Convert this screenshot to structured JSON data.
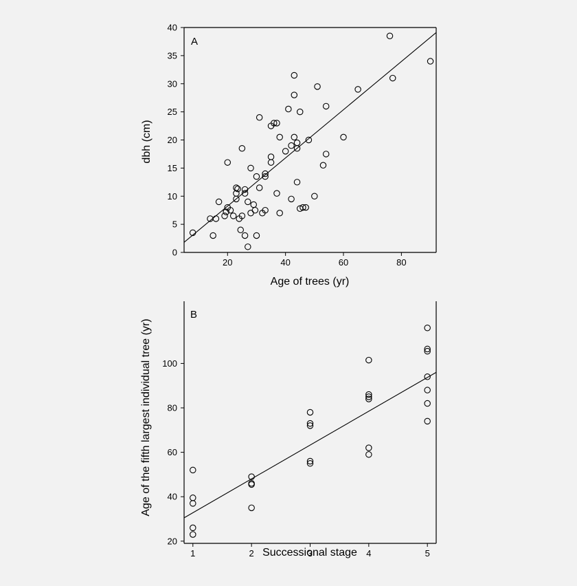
{
  "colors": {
    "background": "#f2f2f2",
    "ink": "#000000"
  },
  "chart_data": [
    {
      "type": "scatter",
      "panel_label": "A",
      "xlabel": "Age of trees (yr)",
      "ylabel": "dbh (cm)",
      "xlim": [
        5,
        92
      ],
      "ylim": [
        0,
        40
      ],
      "xticks": [
        20,
        40,
        60,
        80
      ],
      "yticks": [
        0,
        5,
        10,
        15,
        20,
        25,
        30,
        35,
        40
      ],
      "grid": false,
      "fit_line": {
        "x": [
          5,
          92
        ],
        "y": [
          1.8,
          39.1
        ]
      },
      "points": [
        [
          8,
          3.5
        ],
        [
          14,
          6
        ],
        [
          15,
          3
        ],
        [
          16,
          6
        ],
        [
          17,
          9
        ],
        [
          19,
          6.5
        ],
        [
          19.5,
          7.2
        ],
        [
          20,
          8
        ],
        [
          20,
          16
        ],
        [
          21,
          7.5
        ],
        [
          22,
          6.5
        ],
        [
          23,
          9.5
        ],
        [
          23,
          10.5
        ],
        [
          23,
          11.5
        ],
        [
          23.5,
          11.3
        ],
        [
          24,
          6
        ],
        [
          24.5,
          4
        ],
        [
          25,
          6.5
        ],
        [
          25,
          18.5
        ],
        [
          26,
          3
        ],
        [
          26,
          10.5
        ],
        [
          26,
          11.2
        ],
        [
          27,
          1
        ],
        [
          27,
          9
        ],
        [
          28,
          15
        ],
        [
          28,
          7
        ],
        [
          29,
          8.5
        ],
        [
          29.5,
          7.5
        ],
        [
          30,
          3
        ],
        [
          30,
          13.5
        ],
        [
          31,
          11.5
        ],
        [
          31,
          24
        ],
        [
          32,
          7
        ],
        [
          33,
          7.5
        ],
        [
          33,
          13.5
        ],
        [
          33,
          14
        ],
        [
          35,
          17
        ],
        [
          35,
          16
        ],
        [
          35,
          22.5
        ],
        [
          36,
          23
        ],
        [
          37,
          23
        ],
        [
          37,
          10.5
        ],
        [
          38,
          20.5
        ],
        [
          38,
          7
        ],
        [
          40,
          18
        ],
        [
          41,
          25.5
        ],
        [
          42,
          9.5
        ],
        [
          42,
          19
        ],
        [
          43,
          20.5
        ],
        [
          43,
          28
        ],
        [
          43,
          31.5
        ],
        [
          44,
          19.5
        ],
        [
          44,
          18.5
        ],
        [
          44,
          12.5
        ],
        [
          45,
          7.8
        ],
        [
          45,
          25
        ],
        [
          46,
          8
        ],
        [
          47,
          8
        ],
        [
          48,
          20
        ],
        [
          50,
          10
        ],
        [
          51,
          29.5
        ],
        [
          53,
          15.5
        ],
        [
          54,
          17.5
        ],
        [
          54,
          26
        ],
        [
          60,
          20.5
        ],
        [
          65,
          29
        ],
        [
          76,
          38.5
        ],
        [
          77,
          31
        ],
        [
          90,
          34
        ]
      ]
    },
    {
      "type": "scatter",
      "panel_label": "B",
      "xlabel": "Successional stage",
      "ylabel": "Age of the fifth largest individual tree (yr)",
      "xlim": [
        0.85,
        5.15
      ],
      "ylim": [
        19,
        128
      ],
      "xticks": [
        1,
        2,
        3,
        4,
        5
      ],
      "yticks": [
        20,
        40,
        60,
        80,
        100
      ],
      "grid": false,
      "fit_line": {
        "x": [
          0.85,
          5.15
        ],
        "y": [
          30.5,
          96
        ]
      },
      "points": [
        [
          1,
          52
        ],
        [
          1,
          39.5
        ],
        [
          1,
          37
        ],
        [
          1,
          26
        ],
        [
          1,
          23
        ],
        [
          2,
          49
        ],
        [
          2,
          46
        ],
        [
          2,
          45.5
        ],
        [
          2,
          35
        ],
        [
          3,
          78
        ],
        [
          3,
          73
        ],
        [
          3,
          72
        ],
        [
          3,
          56
        ],
        [
          3,
          55
        ],
        [
          4,
          101.5
        ],
        [
          4,
          86
        ],
        [
          4,
          85
        ],
        [
          4,
          84
        ],
        [
          4,
          62
        ],
        [
          4,
          59
        ],
        [
          5,
          116
        ],
        [
          5,
          106.5
        ],
        [
          5,
          105.5
        ],
        [
          5,
          94
        ],
        [
          5,
          88
        ],
        [
          5,
          82
        ],
        [
          5,
          74
        ]
      ]
    }
  ]
}
